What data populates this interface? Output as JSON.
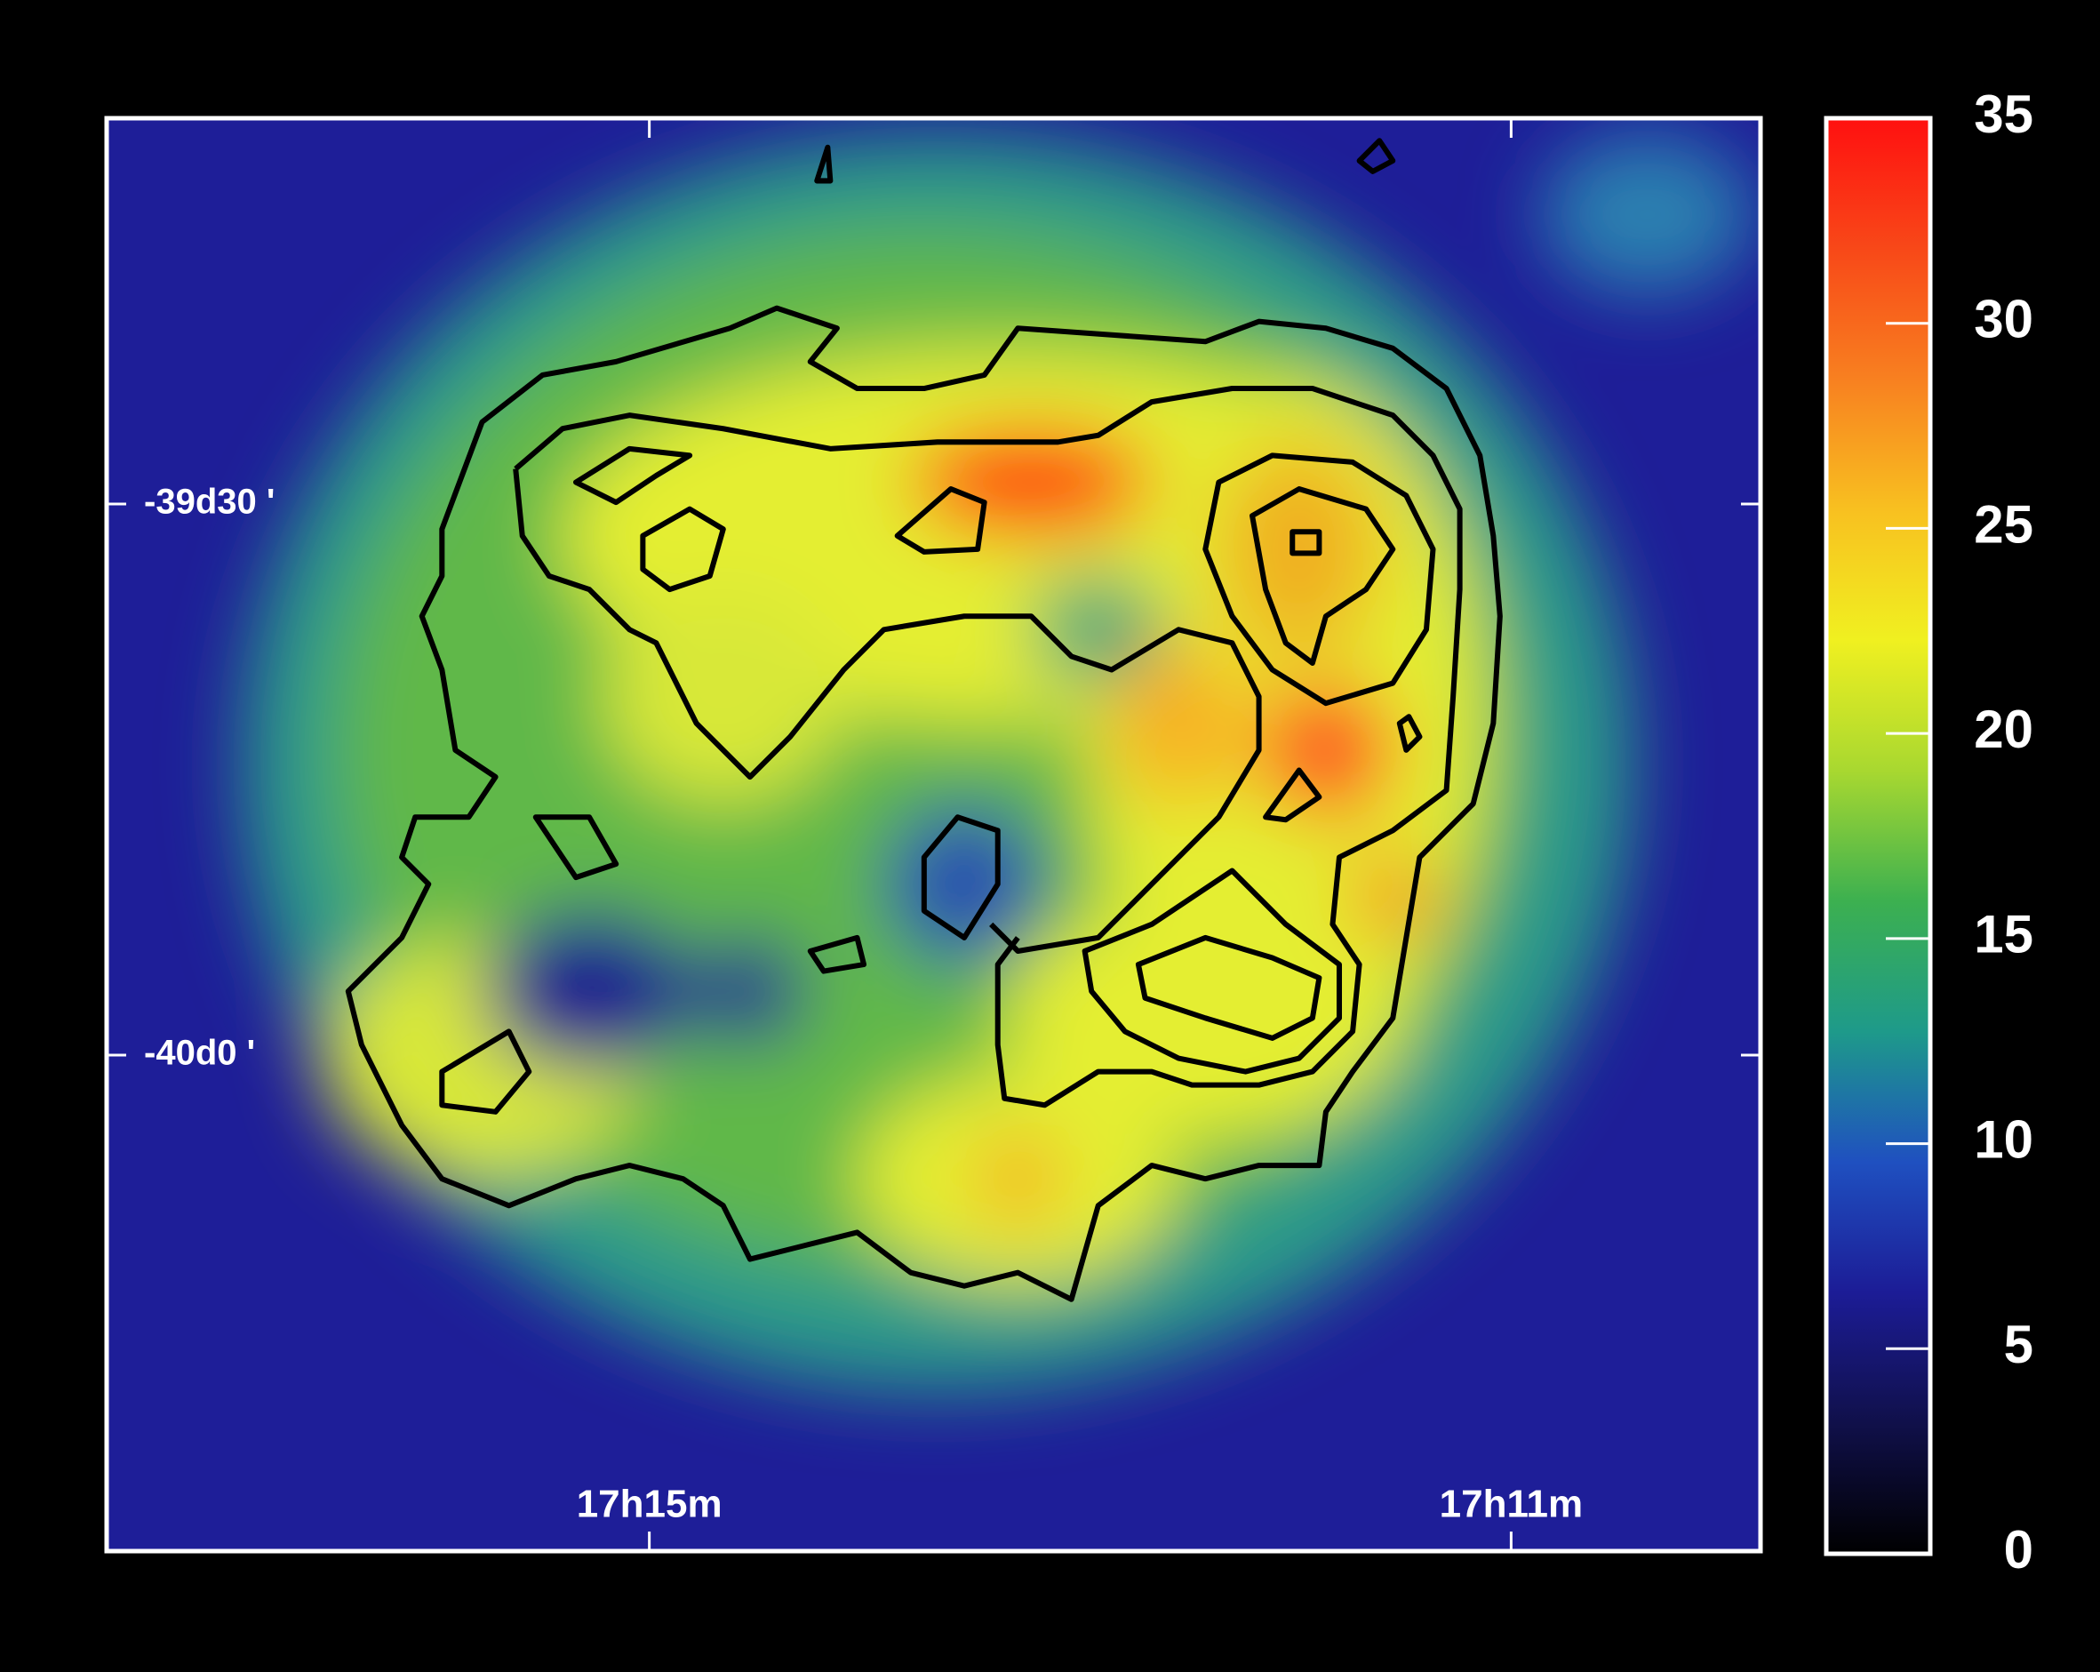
{
  "chart_data": {
    "type": "image",
    "xlim": [
      17.292,
      17.164
    ],
    "xticks": [
      {
        "value": 17.25,
        "label": "17h15m"
      },
      {
        "value": 17.1833,
        "label": "17h11m"
      }
    ],
    "ylim": [
      -40.45,
      -39.15
    ],
    "yticks": [
      {
        "value": -39.5,
        "label": "-39d30 '"
      },
      {
        "value": -40.0,
        "label": "-40d0 '"
      }
    ],
    "clim": [
      0,
      35
    ],
    "cticks": [
      0,
      5,
      10,
      15,
      20,
      25,
      30,
      35
    ],
    "colormap": [
      "#000000",
      "#10104a",
      "#1c1c96",
      "#1f50c0",
      "#1e9a8a",
      "#3cb050",
      "#a8d830",
      "#f0f020",
      "#f8c020",
      "#f88020",
      "#f84818",
      "#ff1010"
    ]
  }
}
